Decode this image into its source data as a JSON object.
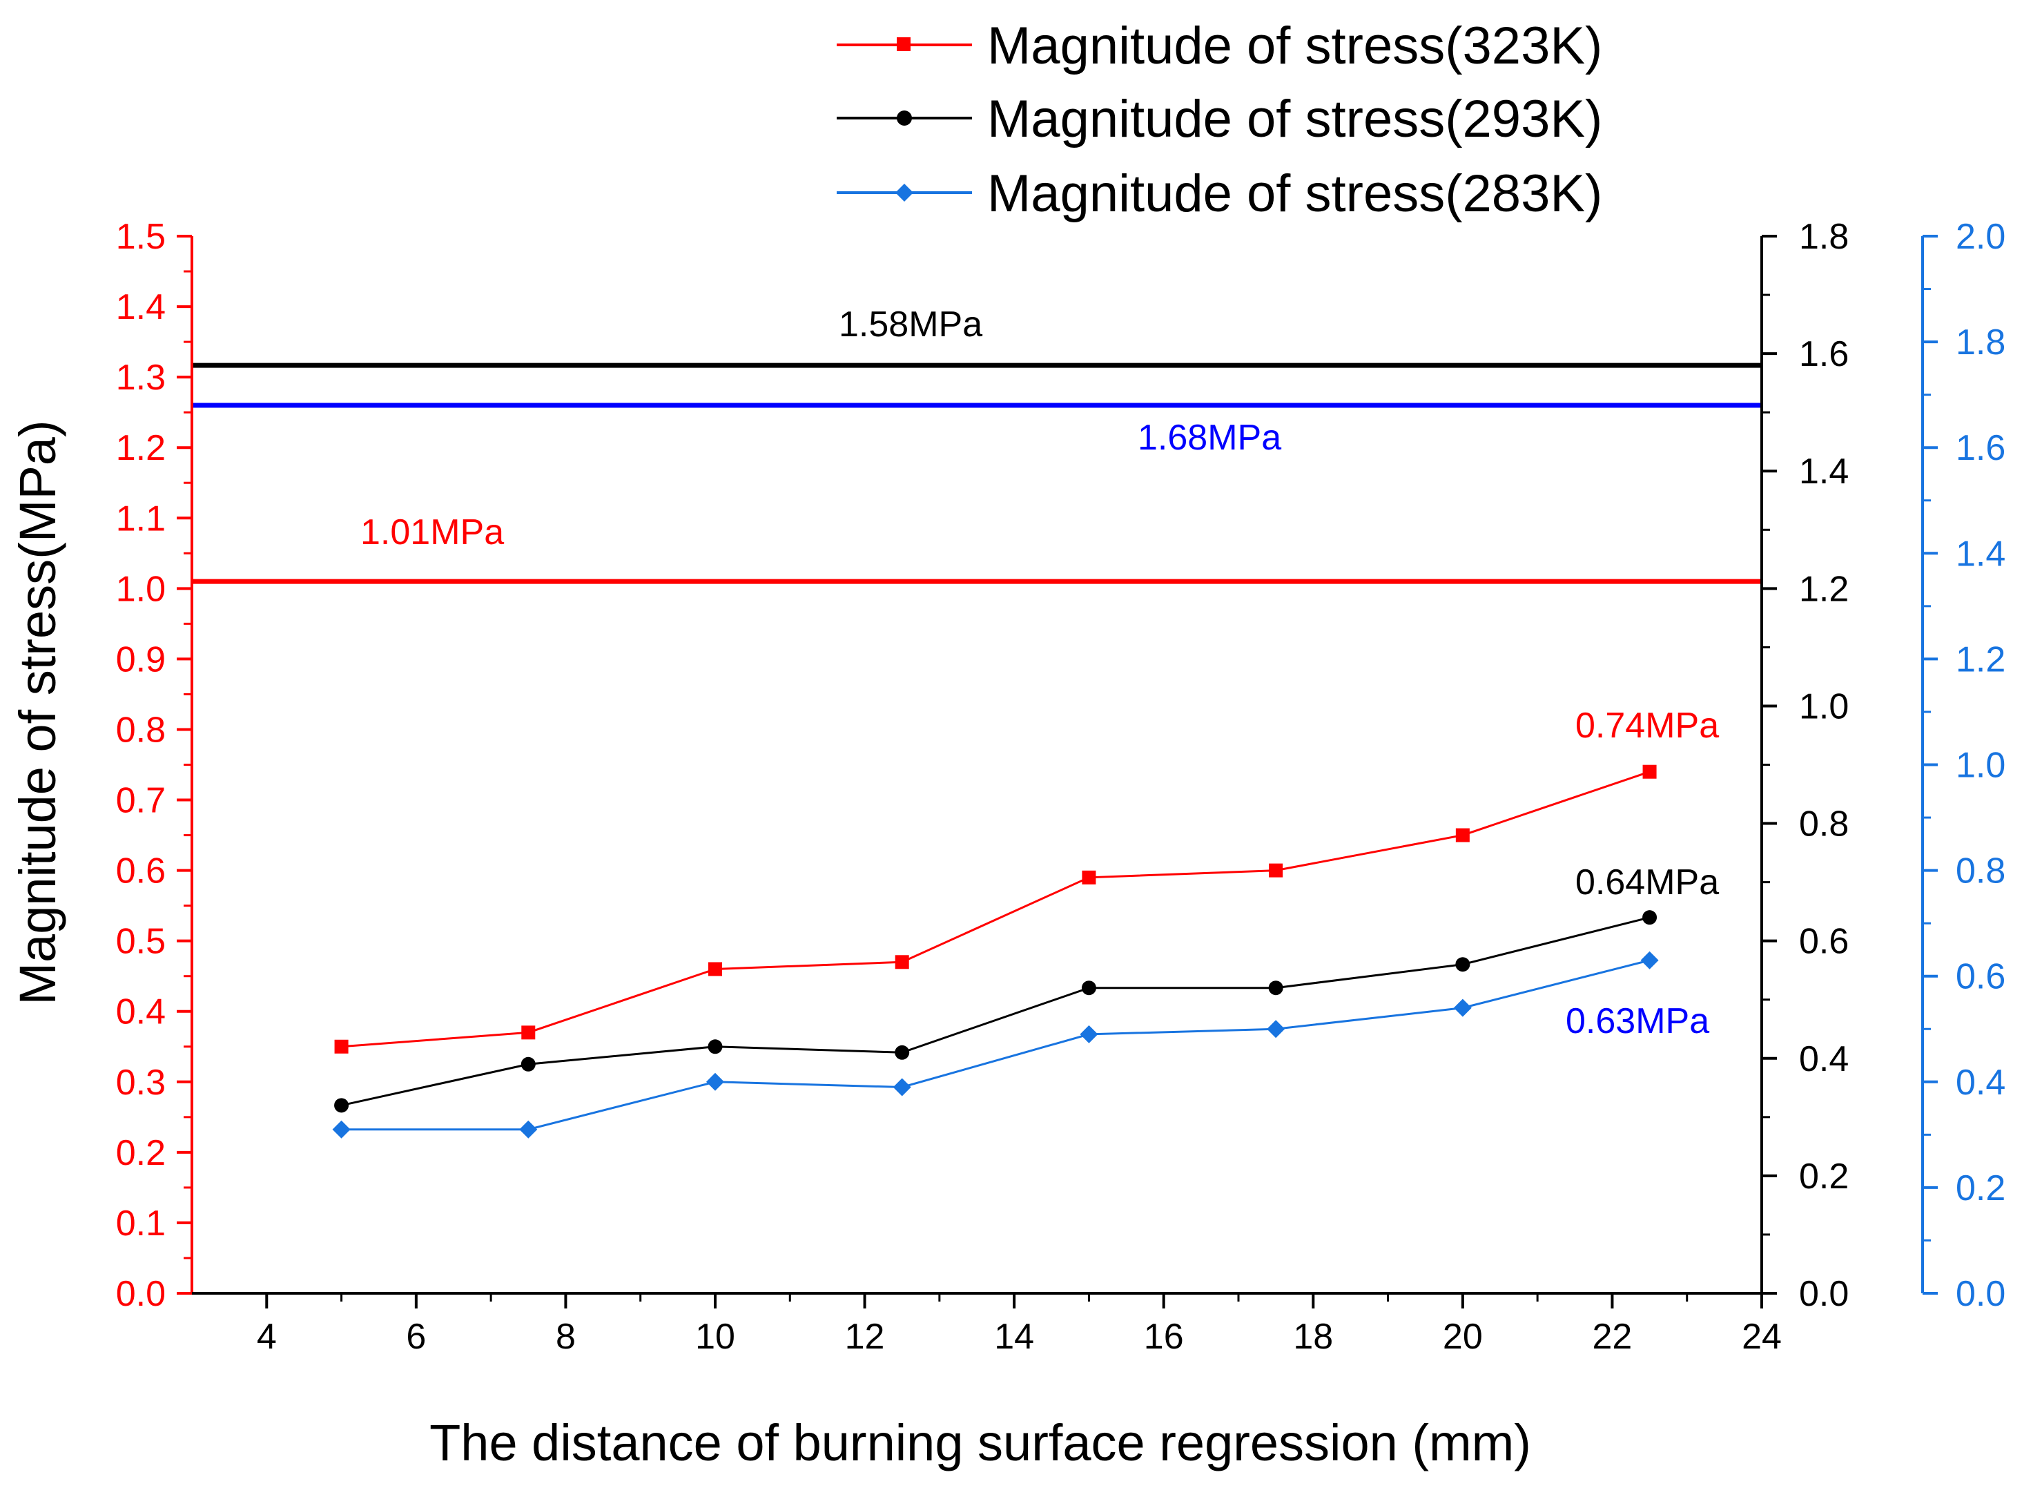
{
  "chart_data": {
    "type": "line",
    "x": [
      5,
      7.5,
      10,
      12.5,
      15,
      17.5,
      20,
      22.5
    ],
    "xlabel": "The distance of burning surface regression (mm)",
    "xlim": [
      3,
      24
    ],
    "xticks": [
      "4",
      "6",
      "8",
      "10",
      "12",
      "14",
      "16",
      "18",
      "20",
      "22",
      "24"
    ],
    "ylabel": "Magnitude of stress(MPa)",
    "legend_position": "top",
    "axes": [
      {
        "id": "left",
        "color": "#ff0000",
        "ylim": [
          0,
          1.5
        ],
        "ticks": [
          "0.0",
          "0.1",
          "0.2",
          "0.3",
          "0.4",
          "0.5",
          "0.6",
          "0.7",
          "0.8",
          "0.9",
          "1.0",
          "1.1",
          "1.2",
          "1.3",
          "1.4",
          "1.5"
        ]
      },
      {
        "id": "right1",
        "color": "#000000",
        "ylim": [
          0,
          1.8
        ],
        "ticks": [
          "0.0",
          "0.2",
          "0.4",
          "0.6",
          "0.8",
          "1.0",
          "1.2",
          "1.4",
          "1.6",
          "1.8"
        ]
      },
      {
        "id": "right2",
        "color": "#1874e0",
        "ylim": [
          0,
          2.0
        ],
        "ticks": [
          "0.0",
          "0.2",
          "0.4",
          "0.6",
          "0.8",
          "1.0",
          "1.2",
          "1.4",
          "1.6",
          "1.8",
          "2.0"
        ]
      }
    ],
    "series": [
      {
        "name": "Magnitude of stress(323K)",
        "axis": "left",
        "color": "#ff0000",
        "marker": "square",
        "values": [
          0.35,
          0.37,
          0.46,
          0.47,
          0.59,
          0.6,
          0.65,
          0.74
        ]
      },
      {
        "name": "Magnitude of stress(293K)",
        "axis": "right1",
        "color": "#000000",
        "marker": "circle",
        "values": [
          0.32,
          0.39,
          0.42,
          0.41,
          0.52,
          0.52,
          0.56,
          0.64
        ]
      },
      {
        "name": "Magnitude of stress(283K)",
        "axis": "right2",
        "color": "#1874e0",
        "marker": "diamond",
        "values": [
          0.31,
          0.31,
          0.4,
          0.39,
          0.49,
          0.5,
          0.54,
          0.63
        ]
      }
    ],
    "reference_lines": [
      {
        "label": "1.58MPa",
        "axis": "right1",
        "value": 1.58,
        "color": "#000000"
      },
      {
        "label": "1.68MPa",
        "axis": "right2",
        "value": 1.68,
        "color": "#0000ff"
      },
      {
        "label": "1.01MPa",
        "axis": "left",
        "value": 1.01,
        "color": "#ff0000"
      }
    ],
    "annotations": [
      {
        "text": "0.74MPa",
        "color": "#ff0000"
      },
      {
        "text": "0.64MPa",
        "color": "#000000"
      },
      {
        "text": "0.63MPa",
        "color": "#0000ff"
      }
    ]
  }
}
